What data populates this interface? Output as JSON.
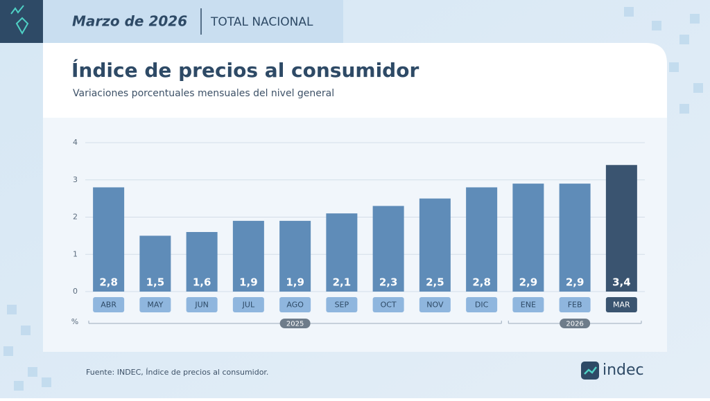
{
  "header": {
    "period": "Marzo de 2026",
    "scope": "TOTAL NACIONAL"
  },
  "chart_data": {
    "type": "bar",
    "title": "Índice de precios al consumidor",
    "subtitle": "Variaciones porcentuales mensuales del nivel general",
    "y_unit": "%",
    "categories": [
      "ABR",
      "MAY",
      "JUN",
      "JUL",
      "AGO",
      "SEP",
      "OCT",
      "NOV",
      "DIC",
      "ENE",
      "FEB",
      "MAR"
    ],
    "values": [
      2.8,
      1.5,
      1.6,
      1.9,
      1.9,
      2.1,
      2.3,
      2.5,
      2.8,
      2.9,
      2.9,
      3.4
    ],
    "value_labels": [
      "2,8",
      "1,5",
      "1,6",
      "1,9",
      "1,9",
      "2,1",
      "2,3",
      "2,5",
      "2,8",
      "2,9",
      "2,9",
      "3,4"
    ],
    "colors": [
      "#5f8cb8",
      "#5f8cb8",
      "#5f8cb8",
      "#5f8cb8",
      "#5f8cb8",
      "#5f8cb8",
      "#5f8cb8",
      "#5f8cb8",
      "#5f8cb8",
      "#5f8cb8",
      "#5f8cb8",
      "#3a5470"
    ],
    "groups": [
      {
        "label": "2025",
        "span": 9
      },
      {
        "label": "2026",
        "span": 3
      }
    ],
    "ylim": [
      0,
      4
    ],
    "yticks": [
      0,
      1,
      2,
      3,
      4
    ],
    "grid": true
  },
  "footer": {
    "source": "Fuente: INDEC, Índice de precios al consumidor.",
    "logo": "indec"
  }
}
